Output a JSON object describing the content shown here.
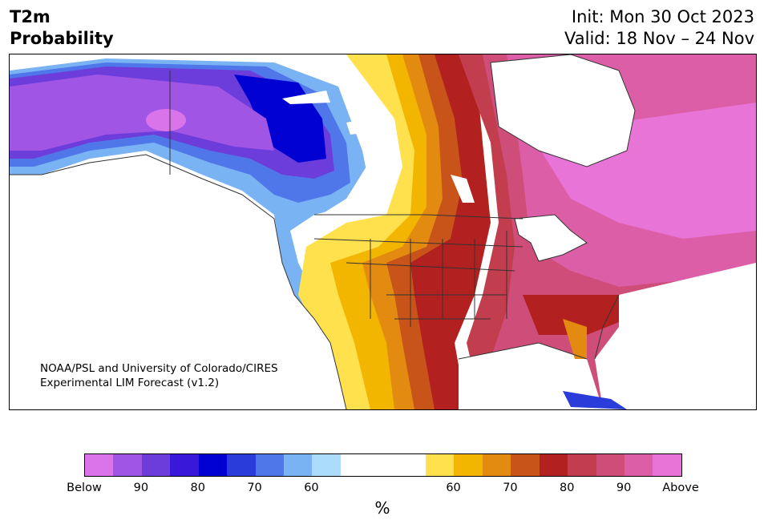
{
  "title": {
    "variable": "T2m",
    "product": "Probability",
    "init": "Init: Mon 30 Oct 2023",
    "valid": "Valid: 18 Nov – 24 Nov"
  },
  "credit": {
    "line1": "NOAA/PSL and University of Colorado/CIRES",
    "line2": "Experimental LIM Forecast (v1.2)"
  },
  "colorbar": {
    "unit": "%",
    "tick_labels": [
      "Below",
      "90",
      "80",
      "70",
      "60",
      "60",
      "70",
      "80",
      "90",
      "Above"
    ],
    "colors": [
      "#da74ea",
      "#a055e5",
      "#6d3ddb",
      "#3a18d9",
      "#0000d2",
      "#2a3ddb",
      "#5077e9",
      "#7ab3f3",
      "#acdcfb",
      "#ffffff",
      "#ffffff",
      "#ffffff",
      "#ffe14d",
      "#f3b600",
      "#e38a10",
      "#c8541a",
      "#b22020",
      "#c23d4e",
      "#cf4d79",
      "#dc5ea7",
      "#e874d7"
    ],
    "categories": [
      "Below",
      "90",
      "80",
      "70",
      "60",
      "",
      "60",
      "70",
      "80",
      "90",
      "Above"
    ]
  },
  "map_regions": {
    "below_normal": "Alaska, western Canada",
    "above_normal": "Central/eastern North America"
  }
}
